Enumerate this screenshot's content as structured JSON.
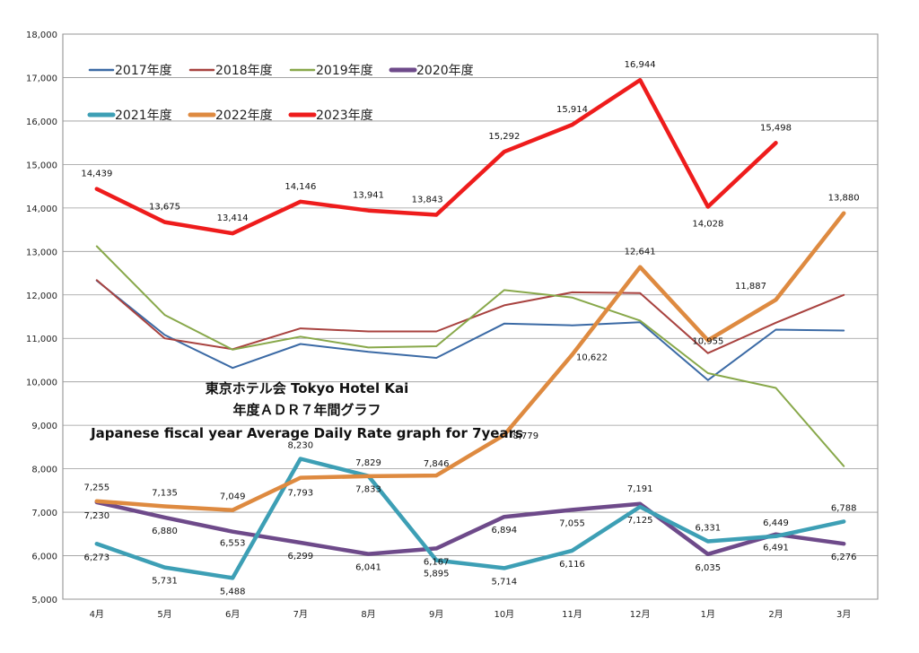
{
  "chart_data": {
    "type": "line",
    "title_lines": [
      "東京ホテル会 Tokyo Hotel Kai",
      "年度ＡＤＲ７年間グラフ",
      "Japanese fiscal year Average Daily Rate graph for 7years"
    ],
    "categories": [
      "4月",
      "5月",
      "6月",
      "7月",
      "8月",
      "9月",
      "10月",
      "11月",
      "12月",
      "1月",
      "2月",
      "3月"
    ],
    "ylim": [
      5000,
      18000
    ],
    "yticks": [
      "5,000",
      "6,000",
      "7,000",
      "8,000",
      "9,000",
      "10,000",
      "11,000",
      "12,000",
      "13,000",
      "14,000",
      "15,000",
      "16,000",
      "17,000",
      "18,000"
    ],
    "ytick_values": [
      5000,
      6000,
      7000,
      8000,
      9000,
      10000,
      11000,
      12000,
      13000,
      14000,
      15000,
      16000,
      17000,
      18000
    ],
    "grid": true,
    "legend_position": "top-left",
    "series": [
      {
        "name": "2017年度",
        "color": "#3b6aa5",
        "bold": false,
        "values": [
          12330,
          11080,
          10320,
          10870,
          10690,
          10550,
          11340,
          11300,
          11370,
          10040,
          11200,
          11180
        ],
        "labels": []
      },
      {
        "name": "2018年度",
        "color": "#a8423f",
        "bold": false,
        "values": [
          12340,
          11000,
          10750,
          11230,
          11160,
          11160,
          11760,
          12060,
          12040,
          10660,
          11360,
          12000
        ],
        "labels": []
      },
      {
        "name": "2019年度",
        "color": "#88a84a",
        "bold": false,
        "values": [
          13120,
          11540,
          10740,
          11040,
          10790,
          10820,
          12110,
          11940,
          11410,
          10200,
          9860,
          8060
        ],
        "labels": []
      },
      {
        "name": "2020年度",
        "color": "#6e4a8a",
        "bold": true,
        "values": [
          7230,
          6880,
          6553,
          6299,
          6041,
          6167,
          6894,
          7055,
          7191,
          6035,
          6491,
          6276
        ],
        "labels": [
          "7,230",
          "6,880",
          "6,553",
          "6,299",
          "6,041",
          "6,167",
          "6,894",
          "7,055",
          "7,191",
          "6,035",
          "6,491",
          "6,276"
        ]
      },
      {
        "name": "2021年度",
        "color": "#3d9fb5",
        "bold": true,
        "values": [
          6273,
          5731,
          5488,
          8230,
          7833,
          5895,
          5714,
          6116,
          7125,
          6331,
          6449,
          6788
        ],
        "labels": [
          "6,273",
          "5,731",
          "5,488",
          "8,230",
          "7,833",
          "5,895",
          "5,714",
          "6,116",
          "7,125",
          "6,331",
          "6,449",
          "6,788"
        ]
      },
      {
        "name": "2022年度",
        "color": "#de8a40",
        "bold": true,
        "values": [
          7255,
          7135,
          7049,
          7793,
          7829,
          7846,
          8779,
          10622,
          12641,
          10955,
          11887,
          13880
        ],
        "labels": [
          "7,255",
          "7,135",
          "7,049",
          "7,793",
          "7,829",
          "7,846",
          "8,779",
          "10,622",
          "12,641",
          "10,955",
          "11,887",
          "13,880"
        ]
      },
      {
        "name": "2023年度",
        "color": "#ee1c1c",
        "bold": true,
        "values": [
          14439,
          13675,
          13414,
          14146,
          13941,
          13843,
          15292,
          15914,
          16944,
          14028,
          15498,
          null
        ],
        "labels": [
          "14,439",
          "13,675",
          "13,414",
          "14,146",
          "13,941",
          "13,843",
          "15,292",
          "15,914",
          "16,944",
          "14,028",
          "15,498",
          ""
        ]
      }
    ]
  }
}
